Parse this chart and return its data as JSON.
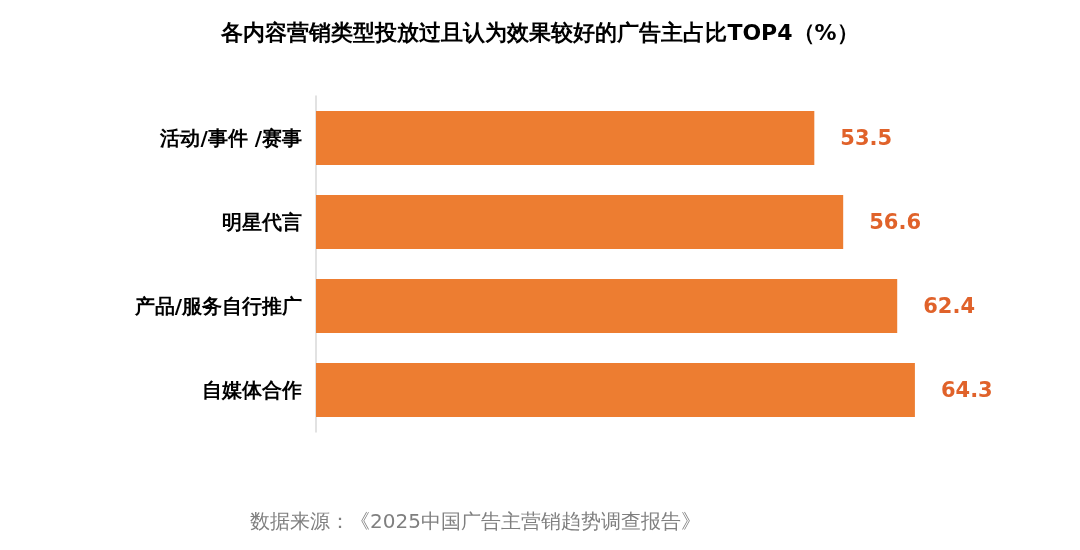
{
  "chart_data": {
    "type": "bar",
    "orientation": "horizontal",
    "title": "各内容营销类型投放过且认为效果较好的广告主占比TOP4（%）",
    "categories": [
      "活动/事件 /赛事",
      "明星代言",
      "产品/服务自行推广",
      "自媒体合作"
    ],
    "values": [
      53.5,
      56.6,
      62.4,
      64.3
    ],
    "color": "#ed7d31",
    "data_labels": true,
    "annotations": [
      "数据来源：《2025中国广告主营销趋势调查报告》"
    ]
  }
}
